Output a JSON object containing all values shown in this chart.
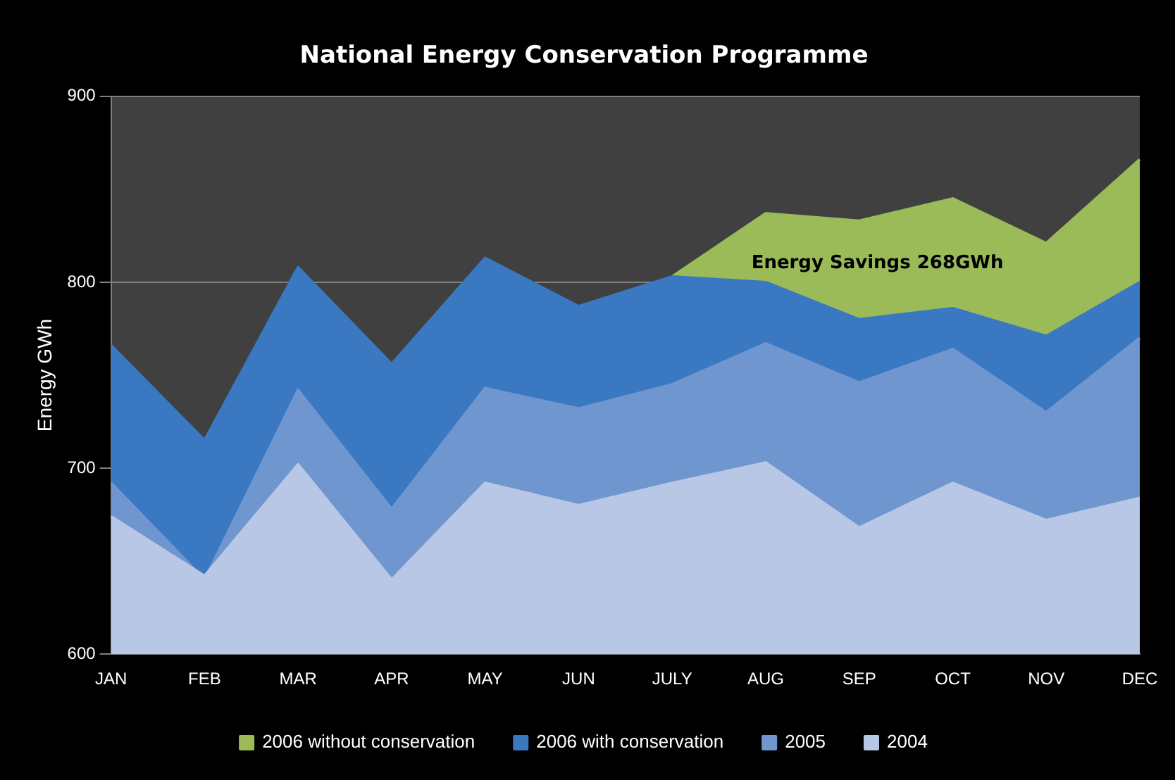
{
  "chart_data": {
    "type": "area",
    "title": "National Energy Conservation Programme",
    "ylabel": "Energy GWh",
    "categories": [
      "JAN",
      "FEB",
      "MAR",
      "APR",
      "MAY",
      "JUN",
      "JULY",
      "AUG",
      "SEP",
      "OCT",
      "NOV",
      "DEC"
    ],
    "series": [
      {
        "name": "2006 without conservation",
        "color": "#9bbb59",
        "values": [
          null,
          null,
          null,
          null,
          null,
          null,
          803,
          837,
          833,
          845,
          821,
          866
        ]
      },
      {
        "name": "2006 with conservation",
        "color": "#3a78c2",
        "values": [
          766,
          715,
          808,
          756,
          813,
          787,
          803,
          800,
          780,
          786,
          771,
          800
        ]
      },
      {
        "name": "2005",
        "color": "#7096d0",
        "values": [
          692,
          640,
          742,
          678,
          743,
          732,
          745,
          767,
          746,
          764,
          730,
          770
        ]
      },
      {
        "name": "2004",
        "color": "#b9c7e6",
        "values": [
          674,
          642,
          702,
          640,
          692,
          680,
          692,
          703,
          668,
          692,
          672,
          684
        ]
      }
    ],
    "ylim": [
      600,
      900
    ],
    "yticks": [
      600,
      700,
      800,
      900
    ],
    "grid": "y",
    "legend": "bottom",
    "annotations": [
      "Energy Savings 268GWh"
    ]
  }
}
